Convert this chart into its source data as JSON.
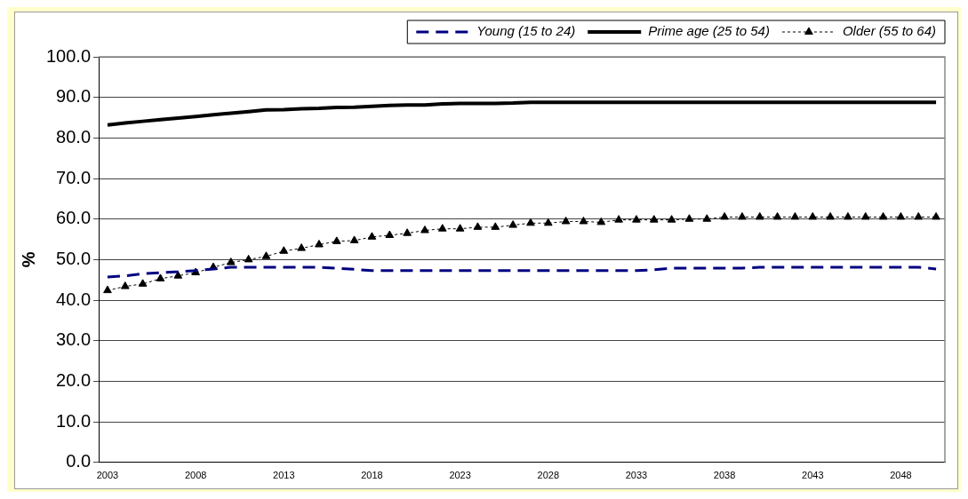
{
  "chart_data": {
    "type": "line",
    "ylabel": "%",
    "categories": [
      "2003",
      null,
      null,
      null,
      null,
      "2008",
      null,
      null,
      null,
      null,
      "2013",
      null,
      null,
      null,
      null,
      "2018",
      null,
      null,
      null,
      null,
      "2023",
      null,
      null,
      null,
      null,
      "2028",
      null,
      null,
      null,
      null,
      "2033",
      null,
      null,
      null,
      null,
      "2038",
      null,
      null,
      null,
      null,
      "2043",
      null,
      null,
      null,
      null,
      "2048",
      null,
      null
    ],
    "series": [
      {
        "name": "Young (15 to 24)",
        "color": "#000080",
        "line_style": "dashed",
        "marker": "none",
        "values": [
          45.7,
          46.0,
          46.5,
          46.8,
          47.0,
          47.3,
          47.7,
          48.1,
          48.1,
          48.1,
          48.1,
          48.1,
          48.1,
          47.9,
          47.6,
          47.3,
          47.3,
          47.3,
          47.3,
          47.3,
          47.3,
          47.3,
          47.3,
          47.3,
          47.3,
          47.3,
          47.3,
          47.3,
          47.3,
          47.3,
          47.3,
          47.5,
          47.9,
          47.9,
          47.9,
          47.9,
          47.9,
          48.1,
          48.1,
          48.1,
          48.1,
          48.1,
          48.1,
          48.1,
          48.1,
          48.1,
          48.1,
          47.7
        ]
      },
      {
        "name": "Prime age (25 to 54)",
        "color": "#000000",
        "line_style": "solid",
        "marker": "none",
        "values": [
          83.2,
          83.7,
          84.1,
          84.5,
          84.9,
          85.3,
          85.7,
          86.1,
          86.5,
          86.9,
          87.0,
          87.2,
          87.3,
          87.5,
          87.6,
          87.8,
          88.0,
          88.1,
          88.1,
          88.4,
          88.5,
          88.5,
          88.5,
          88.6,
          88.8,
          88.8,
          88.8,
          88.8,
          88.8,
          88.8,
          88.8,
          88.8,
          88.8,
          88.8,
          88.8,
          88.8,
          88.8,
          88.8,
          88.8,
          88.8,
          88.8,
          88.8,
          88.8,
          88.8,
          88.8,
          88.8,
          88.8,
          88.8
        ]
      },
      {
        "name": "Older (55 to 64)",
        "color": "#000000",
        "line_style": "dotted",
        "marker": "triangle",
        "values": [
          42.4,
          43.4,
          44.0,
          45.3,
          46.0,
          46.8,
          48.1,
          49.3,
          50.0,
          50.8,
          52.1,
          52.8,
          53.7,
          54.5,
          54.7,
          55.6,
          56.0,
          56.5,
          57.2,
          57.6,
          57.6,
          58.0,
          58.0,
          58.5,
          59.0,
          59.0,
          59.4,
          59.4,
          59.2,
          59.8,
          59.8,
          59.8,
          59.8,
          60.0,
          60.0,
          60.5,
          60.5,
          60.5,
          60.5,
          60.5,
          60.5,
          60.5,
          60.5,
          60.5,
          60.5,
          60.5,
          60.5,
          60.5
        ]
      }
    ],
    "ylim": [
      0,
      100
    ],
    "yticks": [
      {
        "value": 0,
        "label": "0.0"
      },
      {
        "value": 10,
        "label": "10.0"
      },
      {
        "value": 20,
        "label": "20.0"
      },
      {
        "value": 30,
        "label": "30.0"
      },
      {
        "value": 40,
        "label": "40.0"
      },
      {
        "value": 50,
        "label": "50.0"
      },
      {
        "value": 60,
        "label": "60.0"
      },
      {
        "value": 70,
        "label": "70.0"
      },
      {
        "value": 80,
        "label": "80.0"
      },
      {
        "value": 90,
        "label": "90.0"
      },
      {
        "value": 100,
        "label": "100.0"
      }
    ],
    "grid": "y",
    "legend": "top"
  }
}
